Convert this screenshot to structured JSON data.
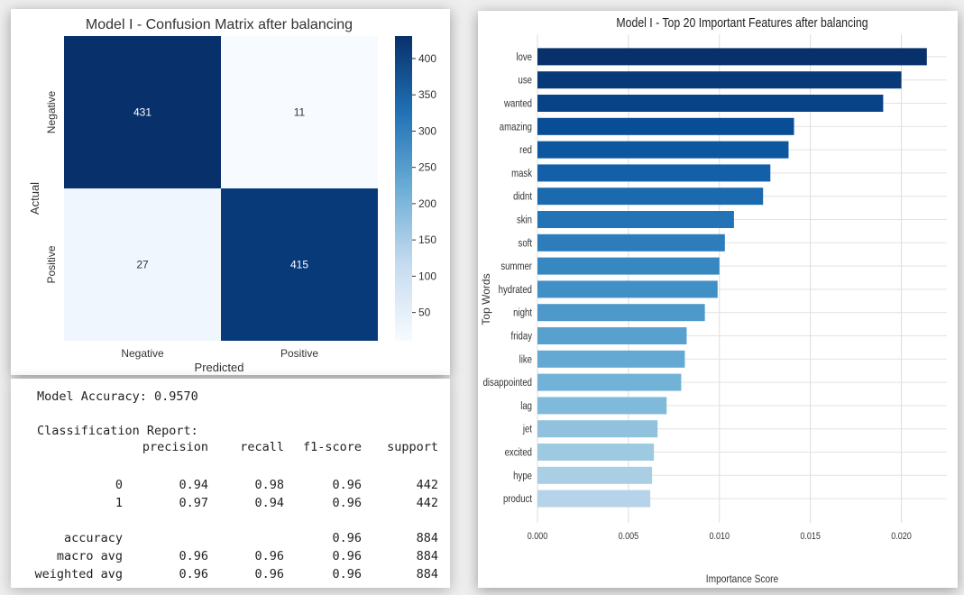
{
  "chart_data": [
    {
      "type": "heatmap",
      "title": "Model I - Confusion Matrix after balancing",
      "xlabel": "Predicted",
      "ylabel": "Actual",
      "x_categories": [
        "Negative",
        "Positive"
      ],
      "y_categories": [
        "Negative",
        "Positive"
      ],
      "values": [
        [
          431,
          11
        ],
        [
          27,
          415
        ]
      ],
      "colorbar": {
        "min": 11,
        "max": 431,
        "ticks": [
          50,
          100,
          150,
          200,
          250,
          300,
          350,
          400
        ]
      },
      "colormap": "Blues"
    },
    {
      "type": "bar",
      "orientation": "horizontal",
      "title": "Model I - Top 20 Important Features after balancing",
      "xlabel": "Importance Score",
      "ylabel": "Top Words",
      "categories": [
        "love",
        "use",
        "wanted",
        "amazing",
        "red",
        "mask",
        "didnt",
        "skin",
        "soft",
        "summer",
        "hydrated",
        "night",
        "friday",
        "like",
        "disappointed",
        "lag",
        "jet",
        "excited",
        "hype",
        "product"
      ],
      "values": [
        0.0214,
        0.02,
        0.019,
        0.0141,
        0.0138,
        0.0128,
        0.0124,
        0.0108,
        0.0103,
        0.01,
        0.0099,
        0.0092,
        0.0082,
        0.0081,
        0.0079,
        0.0071,
        0.0066,
        0.0064,
        0.0063,
        0.0062
      ],
      "xlim": [
        0,
        0.0225
      ],
      "xticks": [
        "0.000",
        "0.005",
        "0.010",
        "0.015",
        "0.020"
      ],
      "grid": true,
      "colormap": "Blues_r"
    }
  ],
  "report": {
    "accuracy_line": "Model Accuracy: 0.9570",
    "heading": "Classification Report:",
    "columns": [
      "precision",
      "recall",
      "f1-score",
      "support"
    ],
    "rows": [
      {
        "label": "0",
        "values": [
          "0.94",
          "0.98",
          "0.96",
          "442"
        ]
      },
      {
        "label": "1",
        "values": [
          "0.97",
          "0.94",
          "0.96",
          "442"
        ]
      },
      {
        "label": "accuracy",
        "values": [
          "",
          "",
          "0.96",
          "884"
        ]
      },
      {
        "label": "macro avg",
        "values": [
          "0.96",
          "0.96",
          "0.96",
          "884"
        ]
      },
      {
        "label": "weighted avg",
        "values": [
          "0.96",
          "0.96",
          "0.96",
          "884"
        ]
      }
    ]
  }
}
